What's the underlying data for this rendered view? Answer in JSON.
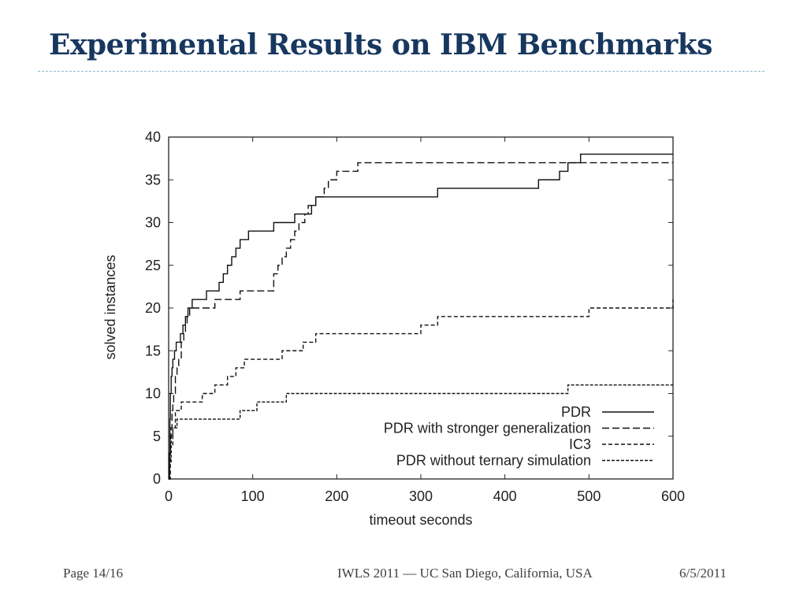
{
  "slide": {
    "title": "Experimental Results on IBM Benchmarks"
  },
  "footer": {
    "page": "Page 14/16",
    "event": "IWLS 2011 — UC San Diego, California, USA",
    "date": "6/5/2011"
  },
  "chart_data": {
    "type": "line",
    "title": "",
    "xlabel": "timeout seconds",
    "ylabel": "solved instances",
    "xlim": [
      0,
      600
    ],
    "ylim": [
      0,
      40
    ],
    "xticks": [
      0,
      100,
      200,
      300,
      400,
      500,
      600
    ],
    "yticks": [
      0,
      5,
      10,
      15,
      20,
      25,
      30,
      35,
      40
    ],
    "grid": false,
    "legend_position": "bottom-right",
    "series": [
      {
        "name": "PDR",
        "style": "solid",
        "x": [
          0,
          1,
          1.5,
          2,
          3,
          4,
          5,
          7,
          9,
          11,
          14,
          17,
          20,
          23,
          26,
          28,
          30,
          45,
          60,
          65,
          70,
          75,
          80,
          85,
          95,
          100,
          125,
          150,
          165,
          170,
          175,
          180,
          320,
          440,
          465,
          475,
          490,
          600
        ],
        "y": [
          0,
          3,
          7,
          10,
          12,
          13,
          14,
          15,
          16,
          16,
          17,
          18,
          19,
          20,
          20,
          21,
          21,
          22,
          23,
          24,
          25,
          26,
          27,
          28,
          29,
          29,
          30,
          31,
          31,
          32,
          33,
          33,
          34,
          35,
          36,
          37,
          38,
          38
        ]
      },
      {
        "name": "PDR with stronger generalization",
        "style": "dashed",
        "x": [
          0,
          1,
          2,
          3,
          4,
          5,
          6,
          8,
          10,
          12,
          15,
          18,
          20,
          22,
          25,
          28,
          55,
          85,
          125,
          130,
          135,
          140,
          145,
          150,
          155,
          158,
          162,
          166,
          175,
          185,
          190,
          200,
          225,
          600
        ],
        "y": [
          0,
          3,
          5,
          6,
          8,
          9,
          10,
          12,
          13,
          14,
          16,
          17,
          18,
          19,
          20,
          20,
          21,
          22,
          24,
          25,
          26,
          27,
          28,
          29,
          30,
          30,
          31,
          32,
          33,
          34,
          35,
          36,
          37,
          37
        ]
      },
      {
        "name": "IC3",
        "style": "short-dashed",
        "x": [
          0,
          2,
          5,
          8,
          15,
          40,
          55,
          70,
          80,
          90,
          100,
          135,
          160,
          175,
          280,
          300,
          320,
          320,
          420,
          470,
          500,
          570,
          600
        ],
        "y": [
          0,
          4,
          6,
          8,
          9,
          10,
          11,
          12,
          13,
          14,
          14,
          15,
          16,
          17,
          17,
          18,
          18,
          19,
          19,
          19,
          20,
          20,
          21
        ]
      },
      {
        "name": "PDR without ternary simulation",
        "style": "dotted-dashed",
        "x": [
          0,
          1,
          3,
          5,
          10,
          40,
          85,
          95,
          105,
          130,
          140,
          165,
          200,
          300,
          400,
          470,
          475,
          600
        ],
        "y": [
          0,
          2,
          5,
          6,
          7,
          7,
          8,
          8,
          9,
          9,
          10,
          10,
          10,
          10,
          10,
          10,
          11,
          11
        ]
      }
    ]
  }
}
